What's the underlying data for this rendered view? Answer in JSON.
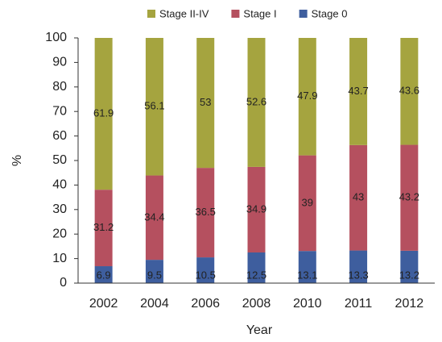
{
  "chart_data": {
    "type": "stacked_bar",
    "categories": [
      "2002",
      "2004",
      "2006",
      "2008",
      "2010",
      "2011",
      "2012"
    ],
    "series": [
      {
        "name": "Stage II-IV",
        "color": "#a5a43f",
        "values": [
          61.9,
          56.1,
          53,
          52.6,
          47.9,
          43.7,
          43.6
        ]
      },
      {
        "name": "Stage I",
        "color": "#b5505f",
        "values": [
          31.2,
          34.4,
          36.5,
          34.9,
          39,
          43,
          43.2
        ]
      },
      {
        "name": "Stage 0",
        "color": "#3e5e9e",
        "values": [
          6.9,
          9.5,
          10.5,
          12.5,
          13.1,
          13.3,
          13.2
        ]
      }
    ],
    "ylim": [
      0,
      100
    ],
    "yticks": [
      0,
      10,
      20,
      30,
      40,
      50,
      60,
      70,
      80,
      90,
      100
    ],
    "y_label": "%",
    "x_label": "Year"
  }
}
